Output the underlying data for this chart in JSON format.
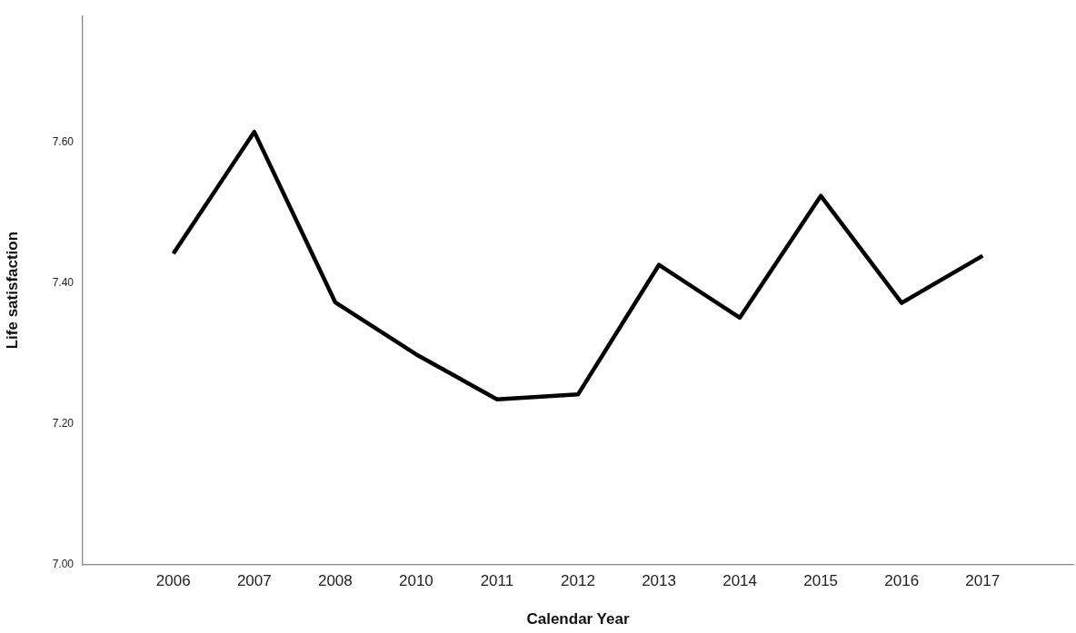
{
  "chart_data": {
    "type": "line",
    "xlabel": "Calendar Year",
    "ylabel": "Life satisfaction",
    "categories": [
      "2006",
      "2007",
      "2008",
      "2010",
      "2011",
      "2012",
      "2013",
      "2014",
      "2015",
      "2016",
      "2017"
    ],
    "series": [
      {
        "color": "#000000",
        "values": [
          7.442,
          7.615,
          7.373,
          7.299,
          7.235,
          7.242,
          7.426,
          7.351,
          7.524,
          7.372,
          7.439
        ]
      }
    ],
    "ylim": [
      7.0,
      7.78
    ],
    "yticks": [
      {
        "value": 7.0,
        "label": "7.00"
      },
      {
        "value": 7.2,
        "label": "7.20"
      },
      {
        "value": 7.4,
        "label": "7.40"
      },
      {
        "value": 7.6,
        "label": "7.60"
      }
    ],
    "grid": false,
    "legend": false,
    "marker": "none",
    "line_style": "solid"
  }
}
